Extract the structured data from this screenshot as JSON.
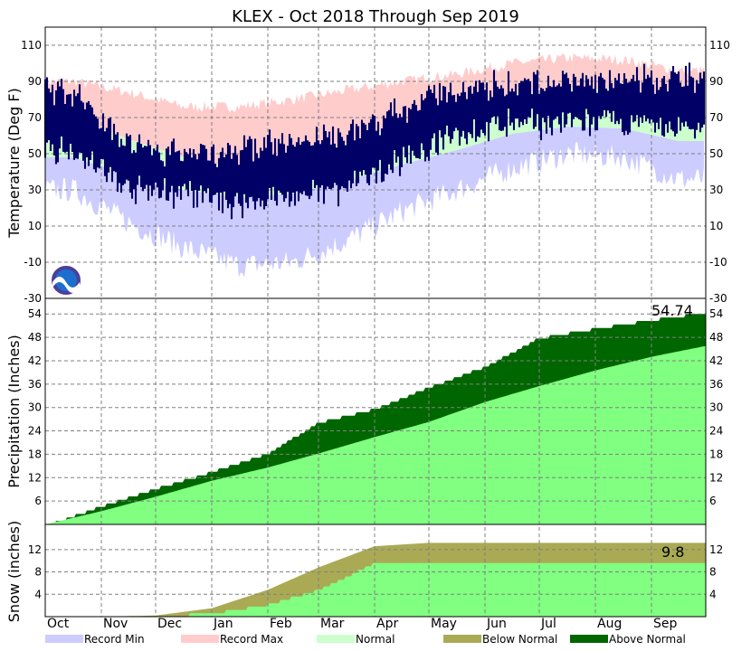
{
  "chart_data": {
    "type": "area",
    "title": "KLEX - Oct 2018 Through Sep 2019",
    "x_months": [
      "Oct",
      "Nov",
      "Dec",
      "Jan",
      "Feb",
      "Mar",
      "Apr",
      "May",
      "Jun",
      "Jul",
      "Aug",
      "Sep"
    ],
    "legend": [
      {
        "label": "Record Min",
        "color": "#ccccff"
      },
      {
        "label": "Record Max",
        "color": "#ffcccc"
      },
      {
        "label": "Normal",
        "color": "#ccffcc"
      },
      {
        "label": "Below Normal",
        "color": "#aaaa55"
      },
      {
        "label": "Above Normal",
        "color": "#006600"
      }
    ],
    "colors": {
      "record_min": "#ccccff",
      "record_max": "#ffcccc",
      "normal": "#ccffcc",
      "observed": "#000066",
      "normal_precip": "#80ff80",
      "above_normal": "#006600",
      "below_normal": "#aaaa55"
    },
    "panels": {
      "temperature": {
        "ylabel": "Temperature (Deg F)",
        "ylim": [
          -30,
          120
        ],
        "yticks": [
          -30,
          -10,
          10,
          30,
          50,
          70,
          90,
          110
        ],
        "monthly": {
          "record_max": [
            90,
            84,
            76,
            76,
            80,
            85,
            90,
            94,
            100,
            103,
            102,
            96
          ],
          "normal_high": [
            70,
            58,
            48,
            42,
            46,
            56,
            66,
            75,
            83,
            86,
            86,
            80
          ],
          "normal_low": [
            48,
            38,
            30,
            26,
            28,
            35,
            44,
            52,
            61,
            65,
            64,
            57
          ],
          "record_min": [
            30,
            12,
            -2,
            -12,
            -10,
            2,
            18,
            30,
            42,
            50,
            48,
            36
          ],
          "observed_high": [
            84,
            56,
            50,
            52,
            56,
            62,
            74,
            86,
            88,
            90,
            89,
            92
          ],
          "observed_low": [
            52,
            30,
            28,
            22,
            26,
            30,
            46,
            60,
            66,
            68,
            66,
            64
          ]
        }
      },
      "precipitation": {
        "ylabel": "Precipitation (Inches)",
        "ylim": [
          0,
          58
        ],
        "yticks": [
          6,
          12,
          18,
          24,
          30,
          36,
          42,
          48,
          54
        ],
        "month_end_actual": [
          5.0,
          9.5,
          13.8,
          18.5,
          26.5,
          30.0,
          35.5,
          40.8,
          48.2,
          50.6,
          52.8,
          54.74
        ],
        "month_end_normal": [
          3.4,
          7.1,
          11.2,
          14.6,
          18.2,
          22.4,
          26.3,
          31.4,
          35.5,
          39.5,
          43.0,
          45.8
        ],
        "total_label": "54.74"
      },
      "snow": {
        "ylabel": "Snow (inches)",
        "ylim": [
          0,
          16.5
        ],
        "yticks": [
          4,
          8,
          12
        ],
        "month_end_actual": [
          0,
          0.3,
          0.8,
          2.4,
          5.0,
          9.8,
          9.8,
          9.8,
          9.8,
          9.8,
          9.8,
          9.8
        ],
        "month_end_normal": [
          0,
          0.2,
          1.5,
          4.8,
          8.8,
          12.6,
          13.2,
          13.2,
          13.2,
          13.2,
          13.2,
          13.2
        ],
        "total_label": "9.8"
      }
    }
  }
}
